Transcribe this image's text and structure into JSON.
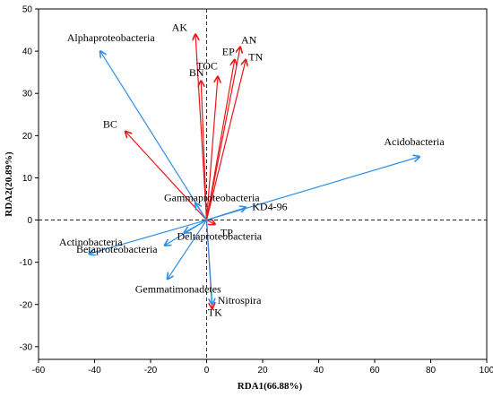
{
  "chart_data": {
    "type": "scatter",
    "subtype": "rda-biplot",
    "title": "",
    "xlabel": "RDA1(66.88%)",
    "ylabel": "RDA2(20.89%)",
    "xlim": [
      -60,
      100
    ],
    "ylim": [
      -33,
      50
    ],
    "xticks": [
      -60,
      -40,
      -20,
      0,
      20,
      40,
      60,
      80,
      100
    ],
    "yticks": [
      -30,
      -20,
      -10,
      0,
      10,
      20,
      30,
      40,
      50
    ],
    "grid": false,
    "legend": "none",
    "colors": {
      "environment": "#e8161b",
      "species": "#2f8fe6"
    },
    "series": [
      {
        "group": "environment",
        "vectors": [
          {
            "label": "AK",
            "x": -4,
            "y": 44
          },
          {
            "label": "AN",
            "x": 12,
            "y": 41
          },
          {
            "label": "EP",
            "x": 10,
            "y": 38
          },
          {
            "label": "TN",
            "x": 14,
            "y": 38
          },
          {
            "label": "TOC",
            "x": 4,
            "y": 34
          },
          {
            "label": "BN",
            "x": -2,
            "y": 33
          },
          {
            "label": "BC",
            "x": -29,
            "y": 21
          },
          {
            "label": "TP",
            "x": 3,
            "y": -1
          },
          {
            "label": "TK",
            "x": 2,
            "y": -21
          }
        ]
      },
      {
        "group": "species",
        "vectors": [
          {
            "label": "Alphaproteobacteria",
            "x": -38,
            "y": 40
          },
          {
            "label": "Acidobacteria",
            "x": 76,
            "y": 15
          },
          {
            "label": "Gammaproteobacteria",
            "x": -4,
            "y": 4
          },
          {
            "label": "KD4-96",
            "x": 14,
            "y": 3
          },
          {
            "label": "Actinobacteria",
            "x": -42,
            "y": -8
          },
          {
            "label": "Deltaproteobacteria",
            "x": -8,
            "y": -3
          },
          {
            "label": "Betaproteobacteria",
            "x": -15,
            "y": -6
          },
          {
            "label": "Gemmatimonadetes",
            "x": -14,
            "y": -14
          },
          {
            "label": "Nitrospira",
            "x": 2,
            "y": -20
          }
        ]
      }
    ]
  }
}
